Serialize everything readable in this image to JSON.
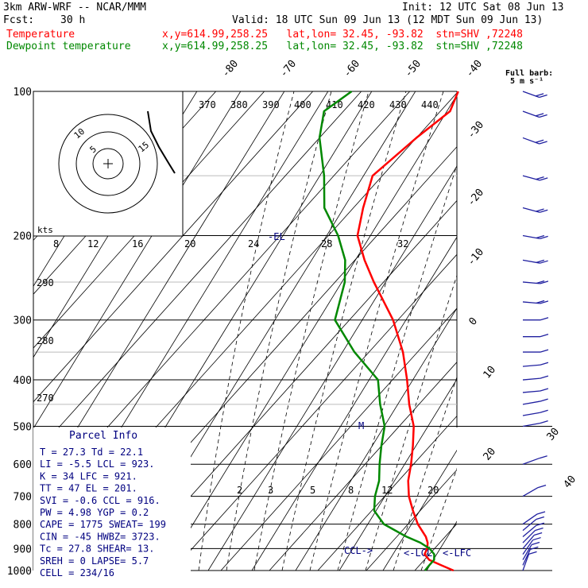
{
  "header": {
    "model": "3km ARW-WRF -- NCAR/MMM",
    "init": "Init: 12 UTC Sat 08 Jun 13",
    "fcst_label": "Fcst:",
    "fcst_value": "30 h",
    "valid": "Valid: 18 UTC Sun 09 Jun 13 (12 MDT Sun 09 Jun 13)",
    "line_temp_name": "Temperature",
    "line_temp_info": "x,y=614.99,258.25   lat,lon= 32.45, -93.82  stn=SHV ,72248",
    "line_dew_name": "Dewpoint temperature",
    "line_dew_info": "x,y=614.99,258.25   lat,lon= 32.45, -93.82  stn=SHV ,72248"
  },
  "colors": {
    "temperature": "#ff0000",
    "dewpoint": "#008800",
    "wind": "#2020a0",
    "text_blue": "#000080"
  },
  "barb_legend": {
    "line1": "Full barb:",
    "line2": "5 m s⁻¹"
  },
  "hodograph": {
    "unit": "kts",
    "ring_labels": [
      "5",
      "10",
      "15"
    ]
  },
  "parcel_info": {
    "title": "Parcel Info",
    "rows": [
      "T  =    27.3 Td =  22.1",
      "LI =    -5.5 LCL = 923.",
      "K  =      34 LFC = 921.",
      "TT =      47 EL  = 201.",
      "SVI =   -0.6 CCL = 916.",
      "PW =    4.98 YGP =  0.2",
      "CAPE =  1775 SWEAT=  199",
      "CIN =    -45 HWBZ= 3723.",
      "Tc =    27.8 SHEAR=  13.",
      "SREH =     0 LAPSE=  5.7",
      "CELL = 234/16"
    ]
  },
  "chart_data": {
    "type": "skew-t",
    "pressure_levels": [
      100,
      200,
      300,
      400,
      500,
      600,
      700,
      800,
      900,
      1000
    ],
    "isotherm_labels": [
      "-80",
      "-70",
      "-60",
      "-50",
      "-40",
      "-30",
      "-20",
      "-10",
      "0",
      "10",
      "20",
      "30",
      "40"
    ],
    "theta_labels": [
      "370",
      "380",
      "390",
      "400",
      "410",
      "420",
      "430",
      "440"
    ],
    "dry_adiabat_labels": [
      "290",
      "280",
      "270"
    ],
    "mixing_ratio_labels": [
      "8",
      "12",
      "16",
      "20",
      "24",
      "28",
      "32"
    ],
    "mixing_ratio_low_labels": [
      "2",
      "3",
      "5",
      "8",
      "12",
      "20"
    ],
    "level_markers": {
      "el": "EL",
      "m": "M",
      "ccl": "CCL->",
      "lcl": "<-LCL",
      "lfc": "<-LFC"
    },
    "temperature_profile": [
      [
        1000,
        28
      ],
      [
        975,
        24.5
      ],
      [
        950,
        21
      ],
      [
        925,
        19
      ],
      [
        900,
        18.5
      ],
      [
        875,
        17.5
      ],
      [
        850,
        16
      ],
      [
        800,
        12
      ],
      [
        750,
        8.5
      ],
      [
        700,
        5
      ],
      [
        650,
        2
      ],
      [
        600,
        -0.5
      ],
      [
        550,
        -3.5
      ],
      [
        500,
        -7
      ],
      [
        450,
        -12
      ],
      [
        400,
        -17
      ],
      [
        350,
        -23
      ],
      [
        300,
        -31
      ],
      [
        250,
        -42
      ],
      [
        225,
        -48
      ],
      [
        200,
        -54
      ],
      [
        175,
        -58
      ],
      [
        150,
        -62
      ],
      [
        125,
        -60
      ],
      [
        110,
        -58
      ],
      [
        100,
        -60
      ]
    ],
    "dewpoint_profile": [
      [
        1000,
        22.1
      ],
      [
        975,
        22
      ],
      [
        950,
        22
      ],
      [
        925,
        21
      ],
      [
        900,
        19
      ],
      [
        875,
        16
      ],
      [
        850,
        12
      ],
      [
        800,
        5
      ],
      [
        750,
        0.5
      ],
      [
        700,
        -2
      ],
      [
        650,
        -4
      ],
      [
        600,
        -7
      ],
      [
        550,
        -10
      ],
      [
        500,
        -13
      ],
      [
        450,
        -18
      ],
      [
        400,
        -23
      ],
      [
        350,
        -33
      ],
      [
        300,
        -43
      ],
      [
        250,
        -48
      ],
      [
        225,
        -52
      ],
      [
        200,
        -58
      ],
      [
        175,
        -66
      ],
      [
        150,
        -72
      ],
      [
        125,
        -80
      ],
      [
        110,
        -84
      ],
      [
        100,
        -82
      ]
    ],
    "parcel_path": [
      [
        125,
        -82
      ],
      [
        118,
        -83
      ],
      [
        110,
        -80
      ],
      [
        105,
        -79
      ]
    ],
    "wind_barbs": [
      {
        "p": 1000,
        "dir": 200,
        "spd": 5
      },
      {
        "p": 975,
        "dir": 205,
        "spd": 5
      },
      {
        "p": 950,
        "dir": 210,
        "spd": 5
      },
      {
        "p": 925,
        "dir": 215,
        "spd": 5
      },
      {
        "p": 900,
        "dir": 220,
        "spd": 5
      },
      {
        "p": 875,
        "dir": 225,
        "spd": 5
      },
      {
        "p": 850,
        "dir": 230,
        "spd": 5
      },
      {
        "p": 825,
        "dir": 230,
        "spd": 5
      },
      {
        "p": 800,
        "dir": 235,
        "spd": 5
      },
      {
        "p": 700,
        "dir": 240,
        "spd": 5
      },
      {
        "p": 600,
        "dir": 250,
        "spd": 5
      },
      {
        "p": 500,
        "dir": 260,
        "spd": 5
      },
      {
        "p": 475,
        "dir": 260,
        "spd": 5
      },
      {
        "p": 450,
        "dir": 260,
        "spd": 5
      },
      {
        "p": 425,
        "dir": 265,
        "spd": 5
      },
      {
        "p": 400,
        "dir": 265,
        "spd": 5
      },
      {
        "p": 375,
        "dir": 265,
        "spd": 5
      },
      {
        "p": 350,
        "dir": 270,
        "spd": 5
      },
      {
        "p": 325,
        "dir": 270,
        "spd": 5
      },
      {
        "p": 300,
        "dir": 270,
        "spd": 5
      },
      {
        "p": 275,
        "dir": 275,
        "spd": 10
      },
      {
        "p": 250,
        "dir": 275,
        "spd": 10
      },
      {
        "p": 225,
        "dir": 280,
        "spd": 10
      },
      {
        "p": 200,
        "dir": 280,
        "spd": 10
      },
      {
        "p": 175,
        "dir": 285,
        "spd": 10
      },
      {
        "p": 150,
        "dir": 285,
        "spd": 10
      },
      {
        "p": 125,
        "dir": 290,
        "spd": 10
      },
      {
        "p": 110,
        "dir": 290,
        "spd": 10
      },
      {
        "p": 100,
        "dir": 290,
        "spd": 10
      }
    ]
  }
}
